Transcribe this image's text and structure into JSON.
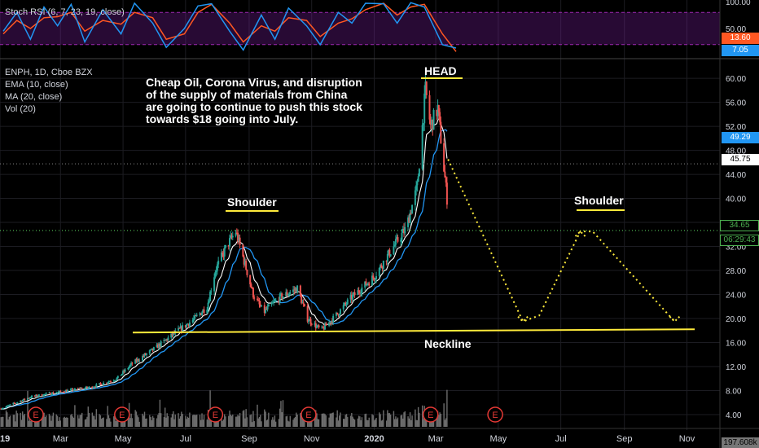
{
  "indicator_legend": "Stoch RSI (6, 7, 23, 19, close)",
  "rsi_axis": {
    "ticks": [
      "100.00",
      "50.00"
    ],
    "k_label": "13.60",
    "d_label": "7.05"
  },
  "legend": {
    "symbol": "ENPH, 1D, Cboe BZX",
    "ema": "EMA (10, close)",
    "ma": "MA (20, close)",
    "vol": "Vol (20)"
  },
  "note_text": "Cheap Oil, Corona Virus, and disruption of the supply of materials from China are going to continue to push this stock towards $18 going into July.",
  "annotations": {
    "head": "HEAD",
    "left_shoulder": "Shoulder",
    "right_shoulder": "Shoulder",
    "neckline": "Neckline"
  },
  "price_labels": {
    "ema_value": "49.29",
    "last_price": "45.75",
    "line_price": "34.65",
    "countdown": "06:29:43",
    "volume": "197.608k"
  },
  "earnings_marker": "E",
  "colors": {
    "up": "#26a69a",
    "down": "#ef5350",
    "ema": "#ffffff",
    "ma": "#2196f3",
    "yellow": "#ffeb3b",
    "rsi_k": "#2196f3",
    "rsi_d": "#ff5722",
    "rsi_band": "#7b1fa2",
    "earnings": "#e53935"
  },
  "chart_data": {
    "type": "candlestick",
    "symbol": "ENPH",
    "interval": "1D",
    "y_ticks": [
      4,
      8,
      12,
      16,
      20,
      24,
      28,
      32,
      36,
      40,
      44,
      48,
      52,
      56,
      60
    ],
    "y_range": [
      2.5,
      63
    ],
    "x_ticks": [
      "2019",
      "Mar",
      "May",
      "Jul",
      "Sep",
      "Nov",
      "2020",
      "Mar",
      "May",
      "Jul",
      "Sep",
      "Nov"
    ],
    "price_path": [
      [
        "2019-01-02",
        5.0
      ],
      [
        "2019-02-01",
        7.0
      ],
      [
        "2019-03-01",
        7.8
      ],
      [
        "2019-04-01",
        8.6
      ],
      [
        "2019-04-25",
        10.0
      ],
      [
        "2019-05-10",
        12.5
      ],
      [
        "2019-06-01",
        15.0
      ],
      [
        "2019-06-20",
        17.5
      ],
      [
        "2019-07-10",
        20.0
      ],
      [
        "2019-07-22",
        22.0
      ],
      [
        "2019-07-30",
        28.0
      ],
      [
        "2019-08-10",
        32.0
      ],
      [
        "2019-08-19",
        34.5
      ],
      [
        "2019-08-28",
        29.0
      ],
      [
        "2019-09-05",
        24.0
      ],
      [
        "2019-09-15",
        21.0
      ],
      [
        "2019-10-01",
        23.5
      ],
      [
        "2019-10-18",
        25.0
      ],
      [
        "2019-10-28",
        20.0
      ],
      [
        "2019-11-10",
        18.0
      ],
      [
        "2019-11-22",
        20.0
      ],
      [
        "2019-12-10",
        23.5
      ],
      [
        "2020-01-01",
        27.0
      ],
      [
        "2020-01-20",
        32.0
      ],
      [
        "2020-02-01",
        35.0
      ],
      [
        "2020-02-12",
        42.0
      ],
      [
        "2020-02-20",
        58.0
      ],
      [
        "2020-02-25",
        52.0
      ],
      [
        "2020-03-03",
        55.0
      ],
      [
        "2020-03-09",
        45.0
      ],
      [
        "2020-03-12",
        40.0
      ]
    ],
    "ema_10_last": 49.29,
    "last_price": 45.75,
    "horizontal_level": 34.65,
    "neckline": [
      [
        "2019-05-01",
        17.8
      ],
      [
        "2020-11-01",
        18.2
      ]
    ],
    "projection": [
      [
        "2020-03-13",
        46.5
      ],
      [
        "2020-05-25",
        19.5
      ],
      [
        "2020-06-10",
        20.5
      ],
      [
        "2020-07-20",
        34.5
      ],
      [
        "2020-08-01",
        34.5
      ],
      [
        "2020-10-20",
        19.5
      ]
    ],
    "earnings_dates": [
      "2019-02-05",
      "2019-04-30",
      "2019-07-30",
      "2019-10-29",
      "2020-02-25",
      "2020-04-28"
    ],
    "stoch_rsi": {
      "ylim": [
        0,
        100
      ],
      "k_last": 13.6,
      "d_last": 7.05,
      "k": [
        [
          0,
          45
        ],
        [
          0.03,
          80
        ],
        [
          0.06,
          30
        ],
        [
          0.09,
          90
        ],
        [
          0.12,
          55
        ],
        [
          0.15,
          95
        ],
        [
          0.18,
          25
        ],
        [
          0.22,
          85
        ],
        [
          0.26,
          40
        ],
        [
          0.29,
          97
        ],
        [
          0.33,
          60
        ],
        [
          0.36,
          15
        ],
        [
          0.4,
          50
        ],
        [
          0.43,
          92
        ],
        [
          0.46,
          96
        ],
        [
          0.5,
          45
        ],
        [
          0.53,
          10
        ],
        [
          0.57,
          75
        ],
        [
          0.6,
          30
        ],
        [
          0.63,
          88
        ],
        [
          0.67,
          55
        ],
        [
          0.7,
          20
        ],
        [
          0.74,
          80
        ],
        [
          0.77,
          60
        ],
        [
          0.8,
          97
        ],
        [
          0.84,
          96
        ],
        [
          0.87,
          60
        ],
        [
          0.9,
          98
        ],
        [
          0.93,
          90
        ],
        [
          0.97,
          20
        ],
        [
          1,
          13.6
        ]
      ],
      "d": [
        [
          0,
          40
        ],
        [
          0.03,
          65
        ],
        [
          0.06,
          50
        ],
        [
          0.09,
          70
        ],
        [
          0.12,
          72
        ],
        [
          0.15,
          80
        ],
        [
          0.18,
          45
        ],
        [
          0.22,
          65
        ],
        [
          0.26,
          58
        ],
        [
          0.29,
          80
        ],
        [
          0.33,
          70
        ],
        [
          0.36,
          30
        ],
        [
          0.4,
          40
        ],
        [
          0.43,
          80
        ],
        [
          0.46,
          95
        ],
        [
          0.5,
          60
        ],
        [
          0.53,
          25
        ],
        [
          0.57,
          55
        ],
        [
          0.6,
          45
        ],
        [
          0.63,
          70
        ],
        [
          0.67,
          65
        ],
        [
          0.7,
          35
        ],
        [
          0.74,
          60
        ],
        [
          0.77,
          68
        ],
        [
          0.8,
          85
        ],
        [
          0.84,
          97
        ],
        [
          0.87,
          75
        ],
        [
          0.9,
          90
        ],
        [
          0.93,
          95
        ],
        [
          0.97,
          40
        ],
        [
          1,
          7.05
        ]
      ]
    }
  }
}
